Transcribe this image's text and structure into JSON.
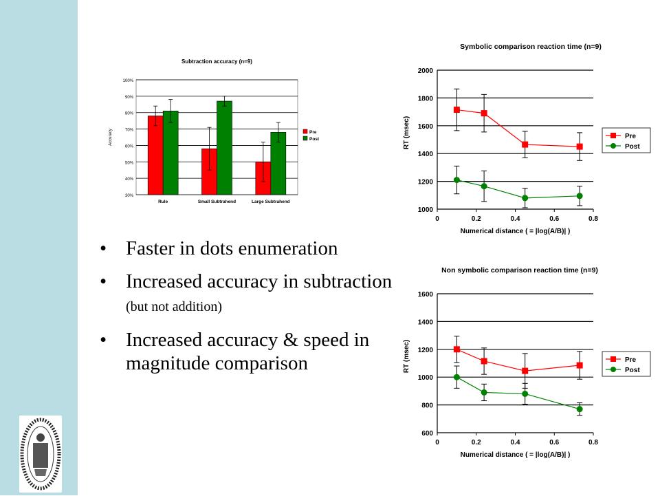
{
  "slide": {
    "bullets": [
      {
        "text": "Faster in dots enumeration"
      },
      {
        "text": "Increased accuracy in subtraction",
        "note": "(but not addition)"
      },
      {
        "text": "Increased accuracy  & speed in magnitude comparison"
      }
    ],
    "bullet_glyph": "•",
    "colors": {
      "sidebar": "#b9dde2",
      "pre": "#ff0000",
      "post": "#008000",
      "bar_pre": "#ff0000",
      "bar_post": "#008000"
    }
  },
  "chart_data": [
    {
      "type": "bar",
      "title": "Subtraction accuracy (n=9)",
      "ylabel": "Accuracy",
      "xlabel": "",
      "categories": [
        "Rule",
        "Small Subtrahend",
        "Large Subtrahend"
      ],
      "series": [
        {
          "name": "Pre",
          "values": [
            78,
            58,
            50
          ],
          "errors": [
            6,
            13,
            12
          ]
        },
        {
          "name": "Post",
          "values": [
            81,
            87,
            68
          ],
          "errors": [
            7,
            3,
            6
          ]
        }
      ],
      "ylim": [
        30,
        100
      ],
      "yticks": [
        "30%",
        "40%",
        "50%",
        "60%",
        "70%",
        "80%",
        "90%",
        "100%"
      ],
      "ytick_values": [
        30,
        40,
        50,
        60,
        70,
        80,
        90,
        100
      ],
      "grid": true,
      "legend": "right"
    },
    {
      "type": "line",
      "title": "Symbolic comparison reaction time (n=9)",
      "ylabel": "RT (msec)",
      "xlabel": "Numerical distance ( = |log(A/B)| )",
      "x": [
        0.1,
        0.24,
        0.45,
        0.73
      ],
      "series": [
        {
          "name": "Pre",
          "values": [
            1715,
            1690,
            1465,
            1450
          ],
          "errors": [
            150,
            135,
            95,
            100
          ]
        },
        {
          "name": "Post",
          "values": [
            1210,
            1165,
            1080,
            1095
          ],
          "errors": [
            100,
            110,
            70,
            70
          ]
        }
      ],
      "xlim": [
        0,
        0.8
      ],
      "ylim": [
        1000,
        2000
      ],
      "xticks": [
        "0",
        "0.2",
        "0.4",
        "0.6",
        "0.8"
      ],
      "xtick_values": [
        0,
        0.2,
        0.4,
        0.6,
        0.8
      ],
      "yticks": [
        "1000",
        "1200",
        "1400",
        "1600",
        "1800",
        "2000"
      ],
      "ytick_values": [
        1000,
        1200,
        1400,
        1600,
        1800,
        2000
      ],
      "grid": true,
      "legend": "right"
    },
    {
      "type": "line",
      "title": "Non symbolic comparison reaction time (n=9)",
      "ylabel": "RT (msec)",
      "xlabel": "Numerical distance ( = |log(A/B)| )",
      "x": [
        0.1,
        0.24,
        0.45,
        0.73
      ],
      "series": [
        {
          "name": "Pre",
          "values": [
            1200,
            1115,
            1045,
            1085
          ],
          "errors": [
            95,
            95,
            125,
            100
          ]
        },
        {
          "name": "Post",
          "values": [
            1000,
            890,
            880,
            770
          ],
          "errors": [
            80,
            60,
            75,
            45
          ]
        }
      ],
      "xlim": [
        0,
        0.8
      ],
      "ylim": [
        600,
        1600
      ],
      "xticks": [
        "0",
        "0.2",
        "0.4",
        "0.6",
        "0.8"
      ],
      "xtick_values": [
        0,
        0.2,
        0.4,
        0.6,
        0.8
      ],
      "yticks": [
        "600",
        "800",
        "1000",
        "1200",
        "1400",
        "1600"
      ],
      "ytick_values": [
        600,
        800,
        1000,
        1200,
        1400,
        1600
      ],
      "grid": true,
      "legend": "right"
    }
  ]
}
